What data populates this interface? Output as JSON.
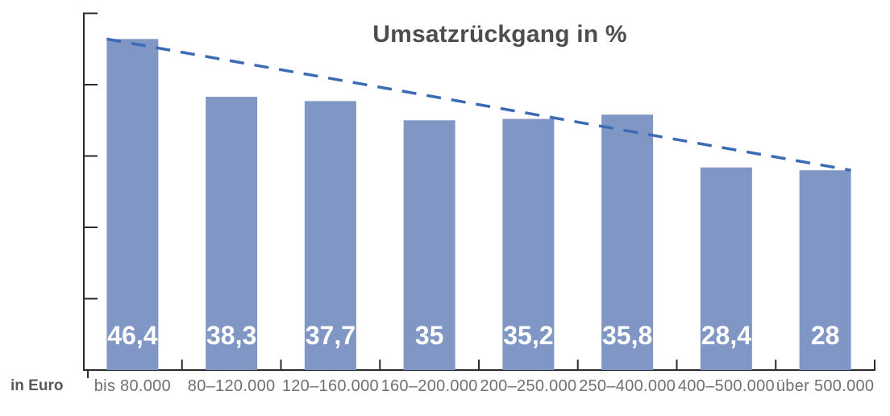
{
  "chart_data": {
    "type": "bar",
    "title": "Umsatzrückgang in %",
    "xlabel": "in Euro",
    "ylabel": "",
    "categories": [
      "bis 80.000",
      "80–120.000",
      "120–160.000",
      "160–200.000",
      "200–250.000",
      "250–400.000",
      "400–500.000",
      "über 500.000"
    ],
    "values": [
      46.4,
      38.3,
      37.7,
      35,
      35.2,
      35.8,
      28.4,
      28
    ],
    "value_labels": [
      "46,4",
      "38,3",
      "37,7",
      "35",
      "35,2",
      "35,8",
      "28,4",
      "28"
    ],
    "ylim": [
      0,
      50
    ],
    "y_tick_step": 10,
    "y_tick_labels_visible": false,
    "grid": false,
    "legend": "none",
    "trendline": {
      "style": "dashed",
      "from_value": 46.4,
      "to_value": 28,
      "description": "dashed straight line from top of first bar to top of last bar"
    },
    "colors": {
      "bar_fill": "#8096c5",
      "trend_line": "#3c6bb5",
      "axis": "#2b2b2b",
      "title_text": "#4d4d4f",
      "category_text": "#707072",
      "unit_label_text": "#59595b",
      "bar_value_text": "#ffffff",
      "background": "#ffffff"
    }
  }
}
